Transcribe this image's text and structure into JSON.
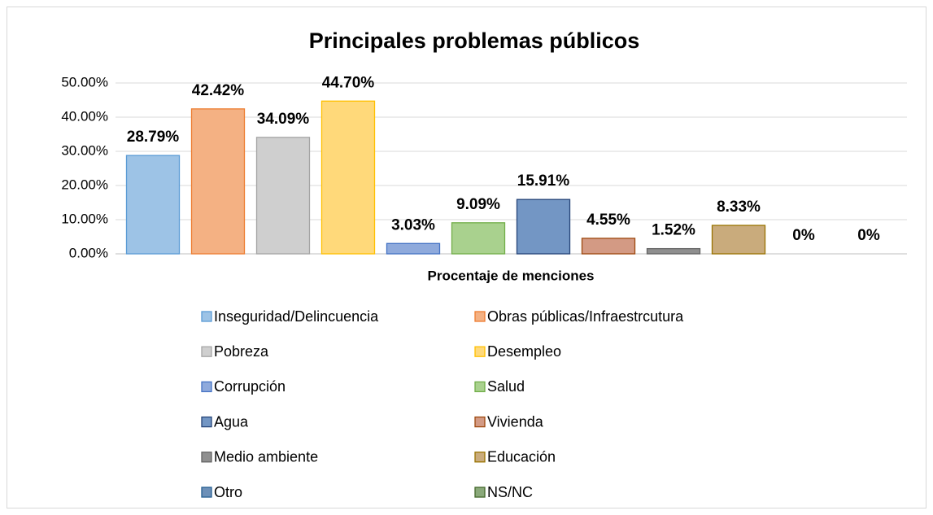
{
  "chart_data": {
    "type": "bar",
    "title": "Principales problemas públicos",
    "categories": [
      "Procentaje de menciones"
    ],
    "ylim": [
      0,
      50
    ],
    "yticks": [
      {
        "value": 0,
        "label": "0.00%"
      },
      {
        "value": 10,
        "label": "10.00%"
      },
      {
        "value": 20,
        "label": "20.00%"
      },
      {
        "value": 30,
        "label": "30.00%"
      },
      {
        "value": 40,
        "label": "40.00%"
      },
      {
        "value": 50,
        "label": "50.00%"
      }
    ],
    "grid": true,
    "legend": "bottom",
    "series": [
      {
        "name": "Inseguridad/Delincuencia",
        "color": "#9dc3e6",
        "edge_color": "#5b9bd5",
        "values": [
          28.79
        ],
        "value_labels": [
          "28.79%"
        ]
      },
      {
        "name": "Obras públicas/Infraestrcutura",
        "color": "#f4b183",
        "edge_color": "#ed7d31",
        "values": [
          42.42
        ],
        "value_labels": [
          "42.42%"
        ]
      },
      {
        "name": "Pobreza",
        "color": "#cfcfcf",
        "edge_color": "#a5a5a5",
        "values": [
          34.09
        ],
        "value_labels": [
          "34.09%"
        ]
      },
      {
        "name": "Desempleo",
        "color": "#ffd97a",
        "edge_color": "#ffc000",
        "values": [
          44.7
        ],
        "value_labels": [
          "44.70%"
        ]
      },
      {
        "name": "Corrupción",
        "color": "#8faadc",
        "edge_color": "#4472c4",
        "values": [
          3.03
        ],
        "value_labels": [
          "3.03%"
        ]
      },
      {
        "name": "Salud",
        "color": "#a9d18e",
        "edge_color": "#70ad47",
        "values": [
          9.09
        ],
        "value_labels": [
          "9.09%"
        ]
      },
      {
        "name": "Agua",
        "color": "#7396c4",
        "edge_color": "#264478",
        "values": [
          15.91
        ],
        "value_labels": [
          "15.91%"
        ]
      },
      {
        "name": "Vivienda",
        "color": "#d39a84",
        "edge_color": "#9e480e",
        "values": [
          4.55
        ],
        "value_labels": [
          "4.55%"
        ]
      },
      {
        "name": "Medio ambiente",
        "color": "#8f8f8f",
        "edge_color": "#636363",
        "values": [
          1.52
        ],
        "value_labels": [
          "1.52%"
        ]
      },
      {
        "name": "Educación",
        "color": "#c9ab7c",
        "edge_color": "#997300",
        "values": [
          8.33
        ],
        "value_labels": [
          "8.33%"
        ]
      },
      {
        "name": "Otro",
        "color": "#6d90b8",
        "edge_color": "#255e91",
        "values": [
          0
        ],
        "value_labels": [
          "0%"
        ]
      },
      {
        "name": "NS/NC",
        "color": "#8aa97a",
        "edge_color": "#43682b",
        "values": [
          0
        ],
        "value_labels": [
          "0%"
        ]
      }
    ]
  }
}
